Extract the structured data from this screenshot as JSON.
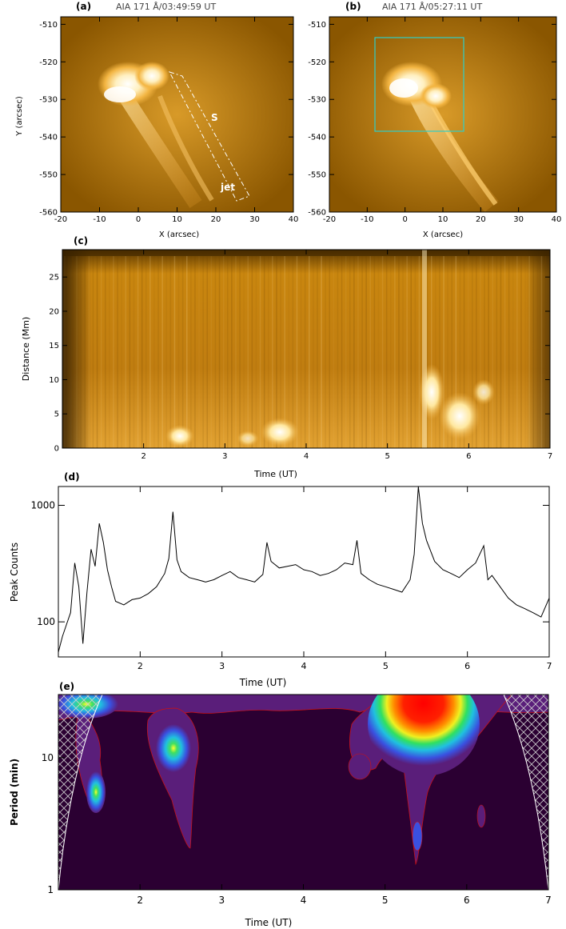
{
  "chart_data": [
    {
      "panel": "(a)",
      "type": "heatmap",
      "title": "AIA 171 Å/03:49:59 UT",
      "xlabel": "X (arcsec)",
      "ylabel": "Y (arcsec)",
      "xlim": [
        -20,
        40
      ],
      "ylim": [
        -560,
        -508
      ],
      "xticks": [
        "-20",
        "-10",
        "0",
        "10",
        "20",
        "30",
        "40"
      ],
      "yticks": [
        "-510",
        "-520",
        "-530",
        "-540",
        "-550",
        "-560"
      ],
      "annotations": [
        "S",
        "jet"
      ],
      "colormap": [
        "#3a2200",
        "#8a5a00",
        "#c98a10",
        "#f0b040",
        "#fff3d0"
      ]
    },
    {
      "panel": "(b)",
      "type": "heatmap",
      "title": "AIA 171 Å/05:27:11 UT",
      "xlabel": "X (arcsec)",
      "xlim": [
        -20,
        40
      ],
      "ylim": [
        -560,
        -508
      ],
      "xticks": [
        "-20",
        "-10",
        "0",
        "10",
        "20",
        "30",
        "40"
      ],
      "yticks": [
        "-510",
        "-520",
        "-530",
        "-540",
        "-550",
        "-560"
      ],
      "box_color": "#2ecfc8"
    },
    {
      "panel": "(c)",
      "type": "heatmap",
      "xlabel": "Time (UT)",
      "ylabel": "Distance (Mm)",
      "xlim": [
        1.0,
        7.0
      ],
      "ylim": [
        0,
        29
      ],
      "xticks": [
        "2",
        "3",
        "4",
        "5",
        "6",
        "7"
      ],
      "yticks": [
        "0",
        "5",
        "10",
        "15",
        "20",
        "25"
      ]
    },
    {
      "panel": "(d)",
      "type": "line",
      "xlabel": "Time (UT)",
      "ylabel": "Peak Counts",
      "xlim": [
        1.0,
        7.0
      ],
      "ylim": [
        50,
        1450
      ],
      "yscale": "log",
      "xticks": [
        "2",
        "3",
        "4",
        "5",
        "6",
        "7"
      ],
      "yticks": [
        "100",
        "1000"
      ],
      "x": [
        1.0,
        1.05,
        1.1,
        1.15,
        1.2,
        1.25,
        1.3,
        1.35,
        1.4,
        1.45,
        1.5,
        1.55,
        1.6,
        1.65,
        1.7,
        1.8,
        1.9,
        2.0,
        2.1,
        2.2,
        2.3,
        2.35,
        2.4,
        2.45,
        2.5,
        2.6,
        2.7,
        2.8,
        2.9,
        3.0,
        3.1,
        3.2,
        3.3,
        3.4,
        3.5,
        3.55,
        3.6,
        3.7,
        3.8,
        3.9,
        4.0,
        4.1,
        4.2,
        4.3,
        4.4,
        4.5,
        4.6,
        4.65,
        4.7,
        4.8,
        4.9,
        5.0,
        5.1,
        5.2,
        5.3,
        5.35,
        5.4,
        5.45,
        5.5,
        5.6,
        5.7,
        5.8,
        5.9,
        6.0,
        6.1,
        6.2,
        6.25,
        6.3,
        6.4,
        6.5,
        6.6,
        6.7,
        6.8,
        6.9,
        7.0
      ],
      "y": [
        55,
        75,
        95,
        120,
        320,
        200,
        65,
        180,
        420,
        300,
        700,
        480,
        280,
        200,
        150,
        140,
        155,
        160,
        175,
        200,
        260,
        350,
        880,
        340,
        270,
        240,
        230,
        220,
        230,
        250,
        270,
        240,
        230,
        220,
        255,
        480,
        330,
        290,
        300,
        310,
        280,
        270,
        250,
        260,
        280,
        320,
        310,
        500,
        260,
        230,
        210,
        200,
        190,
        180,
        230,
        380,
        1450,
        700,
        500,
        330,
        280,
        260,
        240,
        280,
        320,
        450,
        230,
        250,
        200,
        160,
        140,
        130,
        120,
        110,
        160
      ]
    },
    {
      "panel": "(e)",
      "type": "heatmap",
      "xlabel": "Time (UT)",
      "ylabel": "Period (min)",
      "xlim": [
        1.0,
        7.0
      ],
      "ylim": [
        1,
        30
      ],
      "yscale": "log",
      "xticks": [
        "2",
        "3",
        "4",
        "5",
        "6",
        "7"
      ],
      "yticks": [
        "1",
        "10"
      ],
      "colormap": [
        "#2b0032",
        "#5a1e7a",
        "#3a50e0",
        "#20c0e0",
        "#30e060",
        "#f0f020",
        "#ff9000",
        "#ff0000"
      ]
    }
  ]
}
